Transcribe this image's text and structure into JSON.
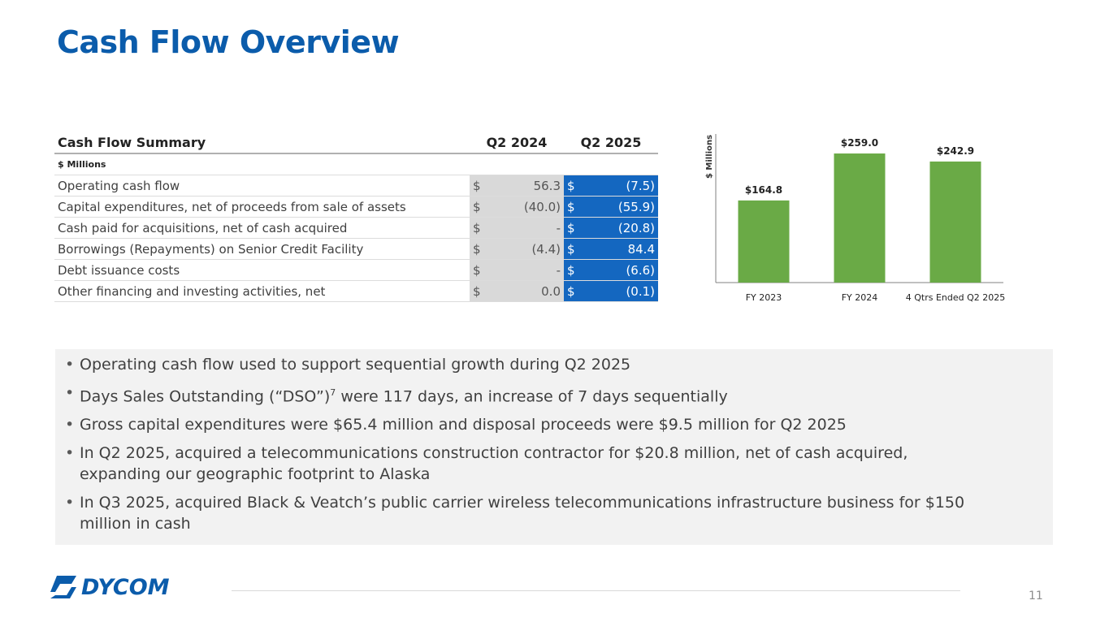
{
  "title": "Cash Flow Overview",
  "table": {
    "header": "Cash Flow Summary",
    "col_q2_2024": "Q2 2024",
    "col_q2_2025": "Q2 2025",
    "subheader": "$ Millions",
    "currency": "$",
    "rows": [
      {
        "label": "Operating cash flow",
        "q2_2024": "56.3",
        "q2_2025": "(7.5)"
      },
      {
        "label": "Capital expenditures, net of proceeds from sale of assets",
        "q2_2024": "(40.0)",
        "q2_2025": "(55.9)"
      },
      {
        "label": "Cash paid for acquisitions, net of cash acquired",
        "q2_2024": "-",
        "q2_2025": "(20.8)"
      },
      {
        "label": "Borrowings (Repayments) on Senior Credit Facility",
        "q2_2024": "(4.4)",
        "q2_2025": "84.4"
      },
      {
        "label": "Debt issuance costs",
        "q2_2024": "-",
        "q2_2025": "(6.6)"
      },
      {
        "label": "Other financing and investing activities, net",
        "q2_2024": "0.0",
        "q2_2025": "(0.1)"
      }
    ]
  },
  "chart_data": {
    "type": "bar",
    "categories": [
      "FY 2023",
      "FY 2024",
      "4 Qtrs Ended Q2 2025"
    ],
    "values": [
      164.8,
      259.0,
      242.9
    ],
    "data_labels": [
      "$164.8",
      "$259.0",
      "$242.9"
    ],
    "title": "",
    "xlabel": "",
    "ylabel": "$ Millions",
    "ylim": [
      0,
      290
    ],
    "bar_color": "#6aaa46",
    "grid": false
  },
  "bullets": {
    "items": [
      {
        "text": "Operating cash flow used to support sequential growth during Q2 2025"
      },
      {
        "pre": "Days Sales Outstanding (“DSO”)",
        "sup": "7",
        "post": " were 117 days, an increase of 7 days sequentially"
      },
      {
        "text": "Gross capital expenditures were $65.4 million and disposal proceeds were $9.5 million for Q2 2025"
      },
      {
        "text": "In Q2 2025, acquired a telecommunications construction contractor for $20.8 million, net of cash acquired, expanding our geographic footprint to Alaska"
      },
      {
        "text": "In Q3 2025, acquired Black & Veatch’s public carrier wireless telecommunications infrastructure business for $150 million in cash"
      }
    ]
  },
  "footer": {
    "logo_text": "DYCOM",
    "page_number": "11"
  },
  "colors": {
    "title": "#0b5cab",
    "q2_2025_column": "#1467c0",
    "q2_2024_column": "#d9d9d9",
    "bar": "#6aaa46"
  }
}
